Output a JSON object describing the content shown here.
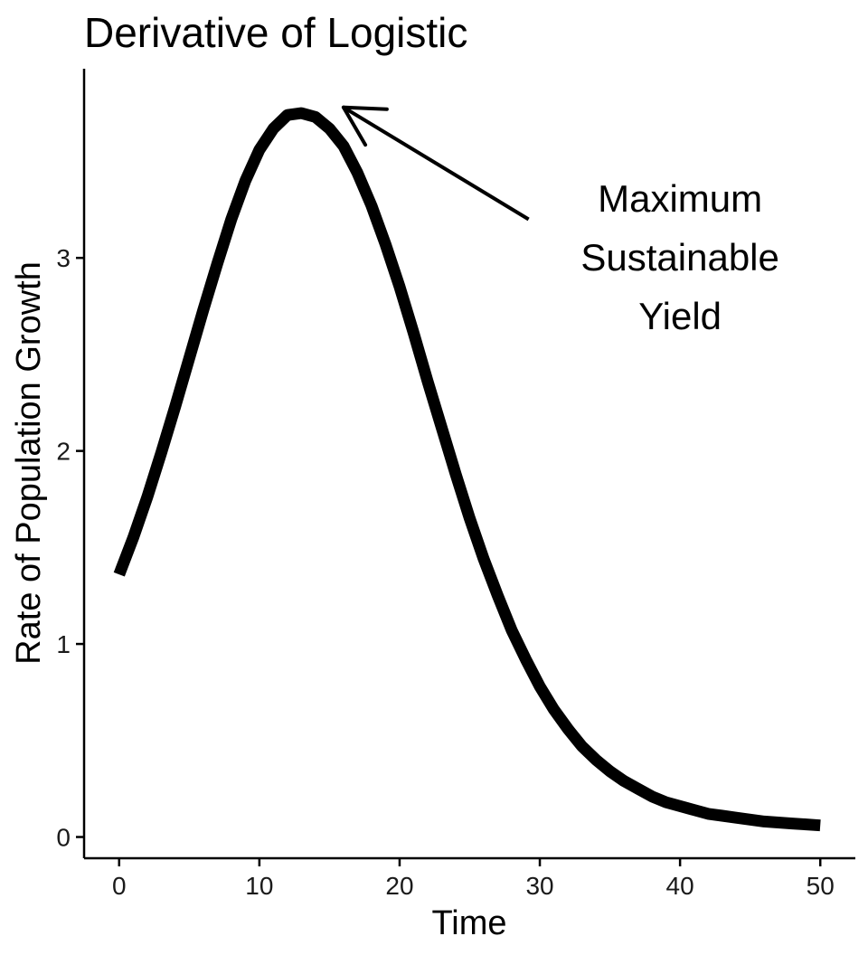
{
  "chart_data": {
    "type": "line",
    "title": "Derivative of Logistic",
    "xlabel": "Time",
    "ylabel": "Rate of Population Growth",
    "xlim": [
      -2.5,
      52.5
    ],
    "ylim": [
      -0.11,
      3.98
    ],
    "xticks": [
      0,
      10,
      20,
      30,
      40,
      50
    ],
    "yticks": [
      0,
      1,
      2,
      3
    ],
    "grid": false,
    "legend": "none",
    "line_color": "#000000",
    "series": [
      {
        "x": [
          0,
          1,
          2,
          3,
          4,
          5,
          6,
          7,
          8,
          9,
          10,
          11,
          12,
          13,
          14,
          15,
          16,
          17,
          18,
          19,
          20,
          21,
          22,
          23,
          24,
          25,
          26,
          27,
          28,
          29,
          30,
          31,
          32,
          33,
          34,
          35,
          36,
          37,
          38,
          39,
          40,
          41,
          42,
          43,
          44,
          45,
          46,
          47,
          48,
          49,
          50
        ],
        "y": [
          1.36,
          1.55,
          1.76,
          1.99,
          2.23,
          2.48,
          2.73,
          2.97,
          3.2,
          3.4,
          3.56,
          3.67,
          3.74,
          3.75,
          3.73,
          3.67,
          3.58,
          3.44,
          3.27,
          3.07,
          2.85,
          2.61,
          2.36,
          2.12,
          1.88,
          1.65,
          1.44,
          1.25,
          1.07,
          0.92,
          0.78,
          0.66,
          0.56,
          0.47,
          0.4,
          0.34,
          0.29,
          0.25,
          0.21,
          0.18,
          0.16,
          0.14,
          0.12,
          0.11,
          0.1,
          0.09,
          0.08,
          0.075,
          0.07,
          0.065,
          0.06
        ]
      }
    ],
    "annotations": [
      {
        "lines": [
          "Maximum",
          "Sustainable",
          "Yield"
        ],
        "x": 40,
        "y": 3.0
      },
      {
        "type": "arrow",
        "from": [
          29.2,
          3.2
        ],
        "to": [
          16.0,
          3.78
        ]
      }
    ]
  }
}
